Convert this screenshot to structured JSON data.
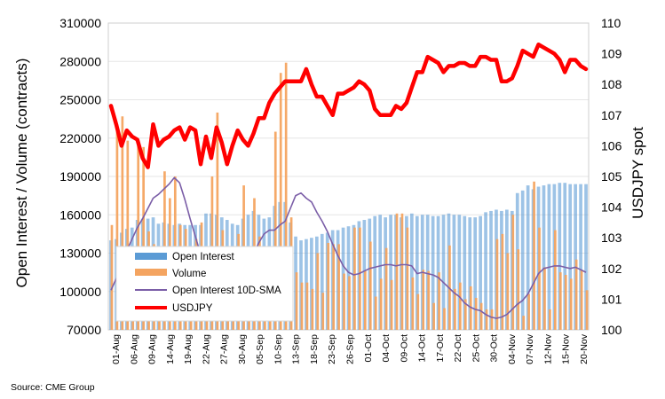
{
  "chart_data": {
    "type": "bar",
    "source": "Source: CME Group",
    "ylabel": "Open Interest / Volume (contracts)",
    "ylabel_right": "USDJPY spot",
    "ylim": [
      70000,
      310000
    ],
    "yticks": [
      70000,
      100000,
      130000,
      160000,
      190000,
      220000,
      250000,
      280000,
      310000
    ],
    "ylim_right": [
      100,
      110
    ],
    "yticks_right": [
      100,
      101,
      102,
      103,
      104,
      105,
      106,
      107,
      108,
      109,
      110
    ],
    "x_tick_labels": [
      "01-Aug",
      "06-Aug",
      "09-Aug",
      "14-Aug",
      "19-Aug",
      "22-Aug",
      "27-Aug",
      "30-Aug",
      "05-Sep",
      "10-Sep",
      "13-Sep",
      "18-Sep",
      "23-Sep",
      "26-Sep",
      "01-Oct",
      "04-Oct",
      "09-Oct",
      "14-Oct",
      "17-Oct",
      "22-Oct",
      "25-Oct",
      "30-Oct",
      "04-Nov",
      "07-Nov",
      "12-Nov",
      "15-Nov",
      "20-Nov"
    ],
    "legend": [
      {
        "name": "Open Interest",
        "color": "#5b9bd5",
        "kind": "bar"
      },
      {
        "name": "Volume",
        "color": "#f4a460",
        "kind": "bar"
      },
      {
        "name": "Open Interest 10D-SMA",
        "color": "#7b5ea7",
        "kind": "line"
      },
      {
        "name": "USDJPY",
        "color": "#ff0000",
        "kind": "thick-line"
      }
    ],
    "series": [
      {
        "name": "Open Interest",
        "axis": "left",
        "values": [
          140000,
          141000,
          146000,
          149000,
          150000,
          156000,
          157000,
          157000,
          158000,
          153000,
          154000,
          153000,
          152000,
          153000,
          152000,
          152000,
          152000,
          152000,
          161000,
          161000,
          160000,
          158000,
          156000,
          153000,
          152000,
          157000,
          160000,
          163000,
          160000,
          157000,
          158000,
          167000,
          170000,
          170000,
          154000,
          143000,
          140000,
          141000,
          142000,
          143000,
          145000,
          146000,
          148000,
          148000,
          150000,
          151000,
          152000,
          155000,
          156000,
          157000,
          159000,
          160000,
          158000,
          160000,
          160000,
          158000,
          159000,
          161000,
          159000,
          160000,
          160000,
          159000,
          159000,
          160000,
          161000,
          160000,
          160000,
          159000,
          158000,
          158000,
          159000,
          162000,
          163000,
          164000,
          163000,
          164000,
          163000,
          177000,
          179000,
          183000,
          180000,
          182000,
          183000,
          184000,
          184000,
          185000,
          185000,
          184000,
          184000,
          184000,
          184000
        ]
      },
      {
        "name": "Volume",
        "axis": "left",
        "values": [
          152000,
          230000,
          237000,
          218000,
          132000,
          215000,
          213000,
          147000,
          137000,
          90000,
          194000,
          173000,
          190000,
          152000,
          149000,
          97000,
          141000,
          154000,
          97000,
          190000,
          240000,
          148000,
          120000,
          112000,
          145000,
          183000,
          96000,
          173000,
          143000,
          99000,
          110000,
          225000,
          271000,
          279000,
          158000,
          115000,
          107000,
          107000,
          102000,
          130000,
          99000,
          138000,
          137000,
          137000,
          114000,
          112000,
          150000,
          150000,
          116000,
          139000,
          96000,
          110000,
          134000,
          109000,
          161000,
          161000,
          150000,
          111000,
          98000,
          117000,
          116000,
          91000,
          115000,
          87000,
          136000,
          102000,
          107000,
          94000,
          104000,
          95000,
          91000,
          86000,
          86000,
          141000,
          145000,
          130000,
          160000,
          133000,
          81000,
          98000,
          186000,
          150000,
          119000,
          86000,
          148000,
          115000,
          113000,
          110000,
          125000,
          117000,
          101000
        ]
      },
      {
        "name": "Open Interest 10D-SMA",
        "axis": "left",
        "values": [
          101000,
          110000,
          120000,
          132000,
          141000,
          150000,
          157000,
          165000,
          173000,
          176000,
          180000,
          184000,
          189000,
          185000,
          172000,
          157000,
          143000,
          129000,
          120000,
          116000,
          115000,
          115000,
          113000,
          113000,
          116000,
          119000,
          124000,
          129000,
          138000,
          145000,
          148000,
          148000,
          152000,
          155000,
          165000,
          175000,
          177000,
          173000,
          170000,
          162000,
          155000,
          147000,
          137000,
          128000,
          120000,
          115000,
          113000,
          114000,
          116000,
          118000,
          119000,
          120000,
          121000,
          121000,
          120000,
          121000,
          121000,
          120000,
          114000,
          115000,
          114000,
          113000,
          111000,
          107000,
          103000,
          99000,
          96000,
          91000,
          88000,
          86000,
          85000,
          82000,
          80000,
          79000,
          80000,
          82000,
          86000,
          90000,
          93000,
          98000,
          106000,
          114000,
          118000,
          119000,
          120000,
          120000,
          119000,
          118000,
          119000,
          117000,
          115000
        ]
      },
      {
        "name": "USDJPY",
        "axis": "right",
        "values": [
          107.3,
          106.7,
          106.0,
          106.5,
          106.3,
          106.2,
          105.6,
          105.3,
          106.7,
          106.0,
          106.2,
          106.3,
          106.5,
          106.6,
          106.2,
          106.6,
          106.5,
          105.4,
          106.3,
          105.6,
          106.6,
          106.1,
          105.4,
          106.0,
          106.5,
          106.2,
          106.0,
          106.4,
          106.9,
          106.9,
          107.4,
          107.7,
          107.9,
          108.1,
          108.1,
          108.1,
          108.1,
          108.5,
          108.0,
          107.6,
          107.6,
          107.3,
          107.0,
          107.7,
          107.7,
          107.8,
          107.9,
          108.1,
          108.0,
          107.8,
          107.2,
          107.0,
          107.0,
          107.0,
          107.3,
          107.2,
          107.4,
          107.9,
          108.4,
          108.4,
          108.9,
          108.8,
          108.7,
          108.4,
          108.6,
          108.6,
          108.7,
          108.7,
          108.6,
          108.6,
          108.9,
          108.9,
          108.8,
          108.8,
          108.1,
          108.1,
          108.2,
          108.6,
          109.1,
          109.0,
          108.9,
          109.3,
          109.2,
          109.1,
          109.0,
          108.8,
          108.4,
          108.8,
          108.8,
          108.6,
          108.5
        ]
      }
    ]
  }
}
